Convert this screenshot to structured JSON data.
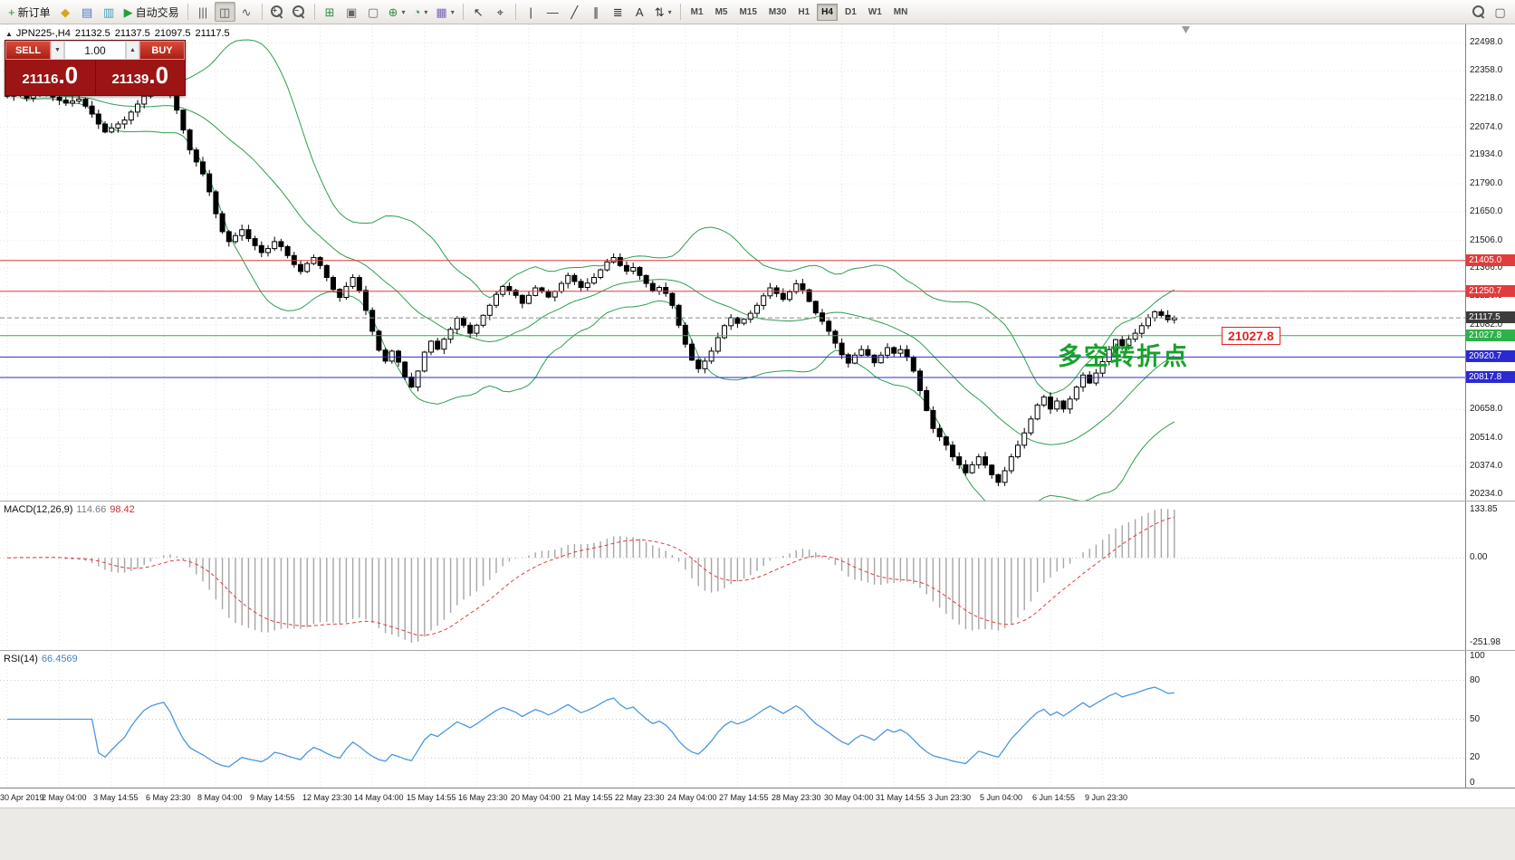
{
  "icons": {
    "caret_down": "▼",
    "caret_up": "▲",
    "caret_small": "▾"
  },
  "toolbar": {
    "active_timeframe": "H4",
    "timeframes": [
      "M1",
      "M5",
      "M15",
      "M30",
      "H1",
      "H4",
      "D1",
      "W1",
      "MN"
    ],
    "items": [
      {
        "name": "new-order-button",
        "icon": "new-order-plus-icon",
        "glyph": "+",
        "color": "#1f9d2f",
        "label": "新订单"
      },
      {
        "name": "market-watch-button",
        "icon": "market-watch-icon",
        "glyph": "◆",
        "color": "#d9a51f"
      },
      {
        "name": "data-window-button",
        "icon": "data-window-icon",
        "glyph": "▤",
        "color": "#4679bd"
      },
      {
        "name": "navigator-button",
        "icon": "navigator-icon",
        "glyph": "▥",
        "color": "#3f9dba"
      },
      {
        "name": "autotrading-button",
        "icon": "autotrading-play-icon",
        "glyph": "▶",
        "color": "#23a23c",
        "label": "自动交易"
      },
      {
        "sep": true
      },
      {
        "name": "bar-chart-button",
        "icon": "bar-chart-icon",
        "glyph": "|||",
        "color": "#555555"
      },
      {
        "name": "candlestick-chart-button",
        "icon": "candlestick-chart-icon",
        "glyph": "◫",
        "color": "#555555",
        "pressed": true
      },
      {
        "name": "line-chart-button",
        "icon": "line-chart-icon",
        "glyph": "∿",
        "color": "#555555"
      },
      {
        "sep": true
      },
      {
        "name": "zoom-in-button",
        "icon": "zoom-in-icon",
        "mag": "+"
      },
      {
        "name": "zoom-out-button",
        "icon": "zoom-out-icon",
        "mag": "−"
      },
      {
        "sep": true
      },
      {
        "name": "tile-windows-button",
        "icon": "tile-windows-icon",
        "glyph": "⊞",
        "color": "#2f8f46"
      },
      {
        "name": "cascade-windows-button",
        "icon": "cascade-windows-icon",
        "glyph": "▣",
        "color": "#666666"
      },
      {
        "name": "arrange-windows-button",
        "icon": "arrange-windows-icon",
        "glyph": "▢",
        "color": "#666666"
      },
      {
        "name": "new-chart-button",
        "icon": "new-chart-icon",
        "glyph": "⊕",
        "color": "#2f8f46",
        "caret": true
      },
      {
        "name": "periods-button",
        "icon": "periods-clock-icon",
        "glyph": "◔",
        "color": "#2f8f46",
        "caret": true
      },
      {
        "name": "templates-button",
        "icon": "templates-icon",
        "glyph": "▦",
        "color": "#7d63b5",
        "caret": true
      },
      {
        "sep": true
      },
      {
        "name": "cursor-button",
        "icon": "cursor-arrow-icon",
        "glyph": "↖",
        "color": "#333333"
      },
      {
        "name": "crosshair-button",
        "icon": "crosshair-icon",
        "glyph": "⌖",
        "color": "#333333"
      },
      {
        "sep": true
      },
      {
        "name": "vertical-line-button",
        "icon": "vertical-line-icon",
        "glyph": "|",
        "color": "#333333"
      },
      {
        "name": "horizontal-line-button",
        "icon": "horizontal-line-icon",
        "glyph": "—",
        "color": "#333333"
      },
      {
        "name": "trendline-button",
        "icon": "trendline-icon",
        "glyph": "╱",
        "color": "#333333"
      },
      {
        "name": "channel-button",
        "icon": "channel-icon",
        "glyph": "∥",
        "color": "#333333"
      },
      {
        "name": "fibonacci-button",
        "icon": "fibonacci-icon",
        "glyph": "≣",
        "color": "#333333"
      },
      {
        "name": "text-button",
        "icon": "text-icon",
        "glyph": "A",
        "color": "#333333"
      },
      {
        "name": "arrows-button",
        "icon": "arrows-icon",
        "glyph": "⇅",
        "color": "#333333",
        "caret": true
      },
      {
        "sep": true
      },
      {
        "timeframes": true
      },
      {
        "spacer": true
      },
      {
        "name": "search-button",
        "icon": "search-icon",
        "mag": ""
      },
      {
        "name": "chart-windows-button",
        "icon": "chart-windows-icon",
        "glyph": "▢",
        "color": "#555555"
      }
    ]
  },
  "legend": {
    "collapse_icon": "▲",
    "symbol": "JPN225-,H4",
    "open": "21132.5",
    "high": "21137.5",
    "low": "21097.5",
    "close": "21117.5"
  },
  "trade_panel": {
    "sell_label": "SELL",
    "buy_label": "BUY",
    "volume": "1.00",
    "sell_price_int": "21116",
    "sell_price_dec": ".0",
    "buy_price_int": "21139",
    "buy_price_dec": ".0"
  },
  "annotation": {
    "text": "多空转折点",
    "price_label": "21027.8"
  },
  "price_axis": {
    "ticks": [
      "22498.0",
      "22358.0",
      "22218.0",
      "22074.0",
      "21934.0",
      "21790.0",
      "21650.0",
      "21506.0",
      "21366.0",
      "21226.0",
      "21082.0",
      "20658.0",
      "20514.0",
      "20374.0",
      "20234.0"
    ]
  },
  "macd": {
    "name": "MACD(12,26,9)",
    "value_main": "114.66",
    "value_signal": "98.42",
    "axis_labels": [
      "133.85",
      "0.00",
      "-251.98"
    ]
  },
  "rsi": {
    "name": "RSI(14)",
    "value": "66.4569",
    "axis_labels": [
      "100",
      "80",
      "50",
      "20",
      "0"
    ],
    "levels": [
      80,
      50,
      20
    ]
  },
  "time_axis": [
    "30 Apr 2019",
    "2 May 04:00",
    "3 May 14:55",
    "6 May 23:30",
    "8 May 04:00",
    "9 May 14:55",
    "12 May 23:30",
    "14 May 04:00",
    "15 May 14:55",
    "16 May 23:30",
    "20 May 04:00",
    "21 May 14:55",
    "22 May 23:30",
    "24 May 04:00",
    "27 May 14:55",
    "28 May 23:30",
    "30 May 04:00",
    "31 May 14:55",
    "3 Jun 23:30",
    "5 Jun 04:00",
    "6 Jun 14:55",
    "9 Jun 23:30"
  ],
  "chart_data": {
    "type": "candlestick",
    "symbol": "JPN225-",
    "timeframe": "H4",
    "current_bar": {
      "open": 21132.5,
      "high": 21137.5,
      "low": 21097.5,
      "close": 21117.5
    },
    "sell_price": 21116.0,
    "buy_price": 21139.0,
    "price_range_visible": [
      20234,
      22498
    ],
    "closes": [
      22230,
      22250,
      22240,
      22220,
      22235,
      22245,
      22240,
      22225,
      22210,
      22195,
      22205,
      22215,
      22180,
      22140,
      22090,
      22050,
      22070,
      22090,
      22110,
      22150,
      22190,
      22230,
      22255,
      22270,
      22280,
      22240,
      22160,
      22060,
      21960,
      21900,
      21840,
      21750,
      21640,
      21550,
      21500,
      21530,
      21560,
      21515,
      21480,
      21445,
      21465,
      21500,
      21475,
      21430,
      21385,
      21350,
      21390,
      21420,
      21380,
      21320,
      21260,
      21220,
      21275,
      21320,
      21255,
      21155,
      21050,
      20955,
      20900,
      20950,
      20895,
      20820,
      20770,
      20850,
      20945,
      21000,
      20960,
      21010,
      21060,
      21115,
      21080,
      21040,
      21080,
      21130,
      21180,
      21235,
      21275,
      21255,
      21230,
      21190,
      21230,
      21268,
      21250,
      21222,
      21250,
      21290,
      21330,
      21300,
      21270,
      21292,
      21320,
      21358,
      21398,
      21420,
      21380,
      21352,
      21370,
      21330,
      21290,
      21252,
      21270,
      21240,
      21180,
      21080,
      20985,
      20905,
      20862,
      20900,
      20950,
      21018,
      21078,
      21118,
      21090,
      21110,
      21140,
      21180,
      21228,
      21268,
      21240,
      21210,
      21248,
      21288,
      21258,
      21200,
      21142,
      21100,
      21050,
      20990,
      20932,
      20890,
      20930,
      20958,
      20930,
      20892,
      20930,
      20968,
      20940,
      20958,
      20920,
      20850,
      20752,
      20652,
      20562,
      20520,
      20478,
      20420,
      20380,
      20340,
      20380,
      20420,
      20378,
      20330,
      20292,
      20350,
      20420,
      20478,
      20540,
      20610,
      20680,
      20720,
      20660,
      20700,
      20660,
      20710,
      20770,
      20830,
      20790,
      20840,
      20898,
      20958,
      21008,
      20978,
      21010,
      21040,
      21078,
      21118,
      21148,
      21130,
      21108,
      21117
    ],
    "overlays": {
      "bollinger_period": 20,
      "bollinger_deviation": 2,
      "bollinger_color": "#2e9e4f"
    },
    "hlines": [
      {
        "price": 21405.0,
        "label": "21405.0",
        "color": "#e03c3c"
      },
      {
        "price": 21250.7,
        "label": "21250.7",
        "color": "#e03c3c"
      },
      {
        "price": 21117.5,
        "label": "21117.5",
        "color": "#3c3c3c",
        "line_color": "#8a8a8a",
        "style": "dashed"
      },
      {
        "price": 21027.8,
        "label": "21027.8",
        "color": "#2db14a"
      },
      {
        "price": 20920.7,
        "label": "20920.7",
        "color": "#2a2ad0"
      },
      {
        "price": 20817.8,
        "label": "20817.8",
        "color": "#2a2ad0"
      }
    ],
    "indicators": [
      {
        "type": "MACD",
        "params": [
          12,
          26,
          9
        ],
        "last_values": [
          114.66,
          98.42
        ],
        "scale": [
          -251.98,
          133.85
        ]
      },
      {
        "type": "RSI",
        "params": [
          14
        ],
        "last_value": 66.4569,
        "levels": [
          20,
          50,
          80
        ],
        "scale": [
          0,
          100
        ]
      }
    ]
  }
}
